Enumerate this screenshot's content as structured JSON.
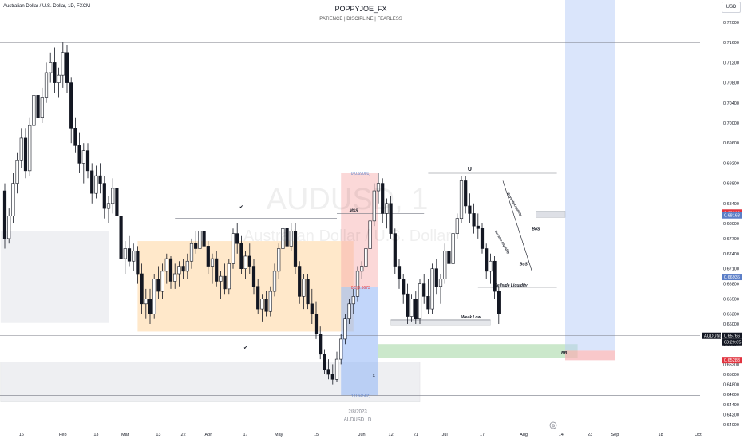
{
  "header": {
    "symbol_title": "Australian Dollar / U.S. Dollar, 1D, FXCM",
    "currency": "USD",
    "brand": "POPPYJOE_FX",
    "tagline": "PATIENCE  |  DISCIPLINE  |  FEARLESS"
  },
  "watermark": {
    "symbol": "AUDUSD, 1",
    "name": "Australian Dollar / U.S. Dollar"
  },
  "colors": {
    "up": "#131722",
    "down": "#131722",
    "range_zone": "#ffd59e",
    "premium_zone": "#f7a9a8",
    "discount_zone": "#90b4f5",
    "target_zone": "#a8d8a8",
    "projection_zone": "#bcd0f7",
    "stop_zone": "#f7b0b3",
    "support_zone": "#d1d4dc",
    "price_tag": "#131722",
    "red_tag": "#e1343f",
    "blue_tag": "#5b7ec7"
  },
  "chart_data": {
    "type": "candlestick",
    "symbol": "AUDUSD",
    "timeframe": "1D",
    "ylim": [
      0.6392,
      0.725
    ],
    "y_ticks": [
      "0.72000",
      "0.71600",
      "0.71200",
      "0.70800",
      "0.70400",
      "0.70000",
      "0.69600",
      "0.69200",
      "0.68800",
      "0.68400",
      "0.68000",
      "0.67700",
      "0.67400",
      "0.67100",
      "0.66800",
      "0.66500",
      "0.66200",
      "0.66000",
      "0.65600",
      "0.65200",
      "0.65000",
      "0.64800",
      "0.64600",
      "0.64400",
      "0.64200",
      "0.64000"
    ],
    "x_ticks": [
      {
        "label": "16",
        "i": 4
      },
      {
        "label": "Feb",
        "i": 14
      },
      {
        "label": "13",
        "i": 22
      },
      {
        "label": "Mar",
        "i": 29
      },
      {
        "label": "13",
        "i": 37
      },
      {
        "label": "22",
        "i": 43
      },
      {
        "label": "Apr",
        "i": 49
      },
      {
        "label": "17",
        "i": 58
      },
      {
        "label": "May",
        "i": 66
      },
      {
        "label": "15",
        "i": 75
      },
      {
        "label": "Jun",
        "i": 86
      },
      {
        "label": "12",
        "i": 93
      },
      {
        "label": "21",
        "i": 99
      },
      {
        "label": "Jul",
        "i": 106
      },
      {
        "label": "17",
        "i": 115
      },
      {
        "label": "Aug",
        "i": 125
      },
      {
        "label": "14",
        "i": 134
      },
      {
        "label": "23",
        "i": 141
      },
      {
        "label": "Sep",
        "i": 147
      },
      {
        "label": "18",
        "i": 158
      },
      {
        "label": "Oct",
        "i": 167
      }
    ],
    "candles": [
      [
        0.6865,
        0.688,
        0.675,
        0.677
      ],
      [
        0.677,
        0.683,
        0.676,
        0.6815
      ],
      [
        0.6815,
        0.69,
        0.68,
        0.688
      ],
      [
        0.688,
        0.694,
        0.686,
        0.6925
      ],
      [
        0.6925,
        0.699,
        0.691,
        0.697
      ],
      [
        0.697,
        0.699,
        0.689,
        0.6905
      ],
      [
        0.6905,
        0.701,
        0.6895,
        0.6995
      ],
      [
        0.6995,
        0.707,
        0.698,
        0.7055
      ],
      [
        0.7055,
        0.7085,
        0.7,
        0.701
      ],
      [
        0.701,
        0.707,
        0.7,
        0.705
      ],
      [
        0.705,
        0.712,
        0.704,
        0.71
      ],
      [
        0.71,
        0.714,
        0.708,
        0.712
      ],
      [
        0.712,
        0.715,
        0.706,
        0.708
      ],
      [
        0.708,
        0.711,
        0.705,
        0.7095
      ],
      [
        0.7095,
        0.716,
        0.707,
        0.714
      ],
      [
        0.714,
        0.7155,
        0.706,
        0.708
      ],
      [
        0.708,
        0.709,
        0.696,
        0.699
      ],
      [
        0.699,
        0.701,
        0.694,
        0.6955
      ],
      [
        0.6955,
        0.698,
        0.69,
        0.692
      ],
      [
        0.692,
        0.696,
        0.688,
        0.6945
      ],
      [
        0.6945,
        0.696,
        0.689,
        0.6905
      ],
      [
        0.6905,
        0.692,
        0.684,
        0.686
      ],
      [
        0.686,
        0.6915,
        0.685,
        0.6895
      ],
      [
        0.6895,
        0.692,
        0.686,
        0.688
      ],
      [
        0.688,
        0.6895,
        0.681,
        0.683
      ],
      [
        0.683,
        0.6855,
        0.68,
        0.684
      ],
      [
        0.684,
        0.689,
        0.682,
        0.687
      ],
      [
        0.687,
        0.688,
        0.68,
        0.6815
      ],
      [
        0.6815,
        0.683,
        0.671,
        0.673
      ],
      [
        0.673,
        0.6765,
        0.67,
        0.675
      ],
      [
        0.675,
        0.6775,
        0.6715,
        0.6725
      ],
      [
        0.6725,
        0.676,
        0.6705,
        0.6745
      ],
      [
        0.6745,
        0.6755,
        0.668,
        0.67
      ],
      [
        0.67,
        0.672,
        0.662,
        0.664
      ],
      [
        0.664,
        0.667,
        0.661,
        0.665
      ],
      [
        0.665,
        0.667,
        0.66,
        0.662
      ],
      [
        0.662,
        0.67,
        0.661,
        0.669
      ],
      [
        0.669,
        0.6715,
        0.665,
        0.6665
      ],
      [
        0.6665,
        0.672,
        0.665,
        0.6705
      ],
      [
        0.6705,
        0.674,
        0.668,
        0.673
      ],
      [
        0.673,
        0.6735,
        0.667,
        0.6685
      ],
      [
        0.6685,
        0.672,
        0.667,
        0.67
      ],
      [
        0.67,
        0.6725,
        0.6675,
        0.6715
      ],
      [
        0.6715,
        0.673,
        0.669,
        0.6705
      ],
      [
        0.6705,
        0.674,
        0.669,
        0.6725
      ],
      [
        0.6725,
        0.677,
        0.671,
        0.676
      ],
      [
        0.676,
        0.6785,
        0.674,
        0.675
      ],
      [
        0.675,
        0.6795,
        0.672,
        0.6785
      ],
      [
        0.6785,
        0.68,
        0.674,
        0.6755
      ],
      [
        0.6755,
        0.6765,
        0.67,
        0.6715
      ],
      [
        0.6715,
        0.674,
        0.668,
        0.673
      ],
      [
        0.673,
        0.6745,
        0.6675,
        0.6685
      ],
      [
        0.6685,
        0.6705,
        0.665,
        0.6695
      ],
      [
        0.6695,
        0.672,
        0.666,
        0.667
      ],
      [
        0.667,
        0.673,
        0.666,
        0.672
      ],
      [
        0.672,
        0.679,
        0.671,
        0.678
      ],
      [
        0.678,
        0.68,
        0.674,
        0.676
      ],
      [
        0.676,
        0.6775,
        0.67,
        0.671
      ],
      [
        0.671,
        0.6745,
        0.669,
        0.6735
      ],
      [
        0.6735,
        0.676,
        0.67,
        0.6715
      ],
      [
        0.6715,
        0.673,
        0.666,
        0.6675
      ],
      [
        0.6675,
        0.669,
        0.662,
        0.663
      ],
      [
        0.663,
        0.666,
        0.6605,
        0.665
      ],
      [
        0.665,
        0.6665,
        0.6615,
        0.6625
      ],
      [
        0.6625,
        0.6675,
        0.6615,
        0.6665
      ],
      [
        0.6665,
        0.672,
        0.6655,
        0.6705
      ],
      [
        0.6705,
        0.676,
        0.669,
        0.675
      ],
      [
        0.675,
        0.68,
        0.674,
        0.679
      ],
      [
        0.679,
        0.681,
        0.674,
        0.6755
      ],
      [
        0.6755,
        0.68,
        0.6745,
        0.6785
      ],
      [
        0.6785,
        0.68,
        0.67,
        0.6715
      ],
      [
        0.6715,
        0.6725,
        0.664,
        0.6655
      ],
      [
        0.6655,
        0.67,
        0.663,
        0.669
      ],
      [
        0.669,
        0.67,
        0.663,
        0.664
      ],
      [
        0.664,
        0.667,
        0.66,
        0.662
      ],
      [
        0.662,
        0.6645,
        0.657,
        0.658
      ],
      [
        0.658,
        0.6595,
        0.653,
        0.654
      ],
      [
        0.654,
        0.655,
        0.65,
        0.651
      ],
      [
        0.651,
        0.653,
        0.649,
        0.65
      ],
      [
        0.65,
        0.652,
        0.648,
        0.649
      ],
      [
        0.649,
        0.6545,
        0.6485,
        0.653
      ],
      [
        0.653,
        0.658,
        0.652,
        0.657
      ],
      [
        0.657,
        0.662,
        0.656,
        0.661
      ],
      [
        0.661,
        0.665,
        0.66,
        0.664
      ],
      [
        0.664,
        0.667,
        0.662,
        0.6655
      ],
      [
        0.6655,
        0.6715,
        0.6645,
        0.6705
      ],
      [
        0.6705,
        0.6725,
        0.669,
        0.6715
      ],
      [
        0.6715,
        0.676,
        0.67,
        0.675
      ],
      [
        0.675,
        0.6815,
        0.674,
        0.6805
      ],
      [
        0.6805,
        0.688,
        0.6795,
        0.6865
      ],
      [
        0.6865,
        0.69,
        0.684,
        0.688
      ],
      [
        0.688,
        0.689,
        0.68,
        0.682
      ],
      [
        0.682,
        0.685,
        0.679,
        0.684
      ],
      [
        0.684,
        0.6855,
        0.677,
        0.678
      ],
      [
        0.678,
        0.679,
        0.67,
        0.6715
      ],
      [
        0.6715,
        0.673,
        0.667,
        0.669
      ],
      [
        0.669,
        0.67,
        0.664,
        0.666
      ],
      [
        0.666,
        0.668,
        0.66,
        0.6615
      ],
      [
        0.6615,
        0.666,
        0.6605,
        0.665
      ],
      [
        0.665,
        0.6665,
        0.66,
        0.661
      ],
      [
        0.661,
        0.669,
        0.66,
        0.668
      ],
      [
        0.668,
        0.67,
        0.664,
        0.6655
      ],
      [
        0.6655,
        0.669,
        0.662,
        0.663
      ],
      [
        0.663,
        0.672,
        0.662,
        0.671
      ],
      [
        0.671,
        0.673,
        0.666,
        0.6675
      ],
      [
        0.6675,
        0.67,
        0.664,
        0.669
      ],
      [
        0.669,
        0.676,
        0.668,
        0.6745
      ],
      [
        0.6745,
        0.676,
        0.67,
        0.672
      ],
      [
        0.672,
        0.679,
        0.671,
        0.678
      ],
      [
        0.678,
        0.682,
        0.677,
        0.681
      ],
      [
        0.681,
        0.6895,
        0.68,
        0.6885
      ],
      [
        0.6885,
        0.6895,
        0.682,
        0.6835
      ],
      [
        0.6835,
        0.686,
        0.68,
        0.682
      ],
      [
        0.682,
        0.684,
        0.678,
        0.6795
      ],
      [
        0.6795,
        0.682,
        0.677,
        0.679
      ],
      [
        0.679,
        0.68,
        0.674,
        0.675
      ],
      [
        0.675,
        0.676,
        0.669,
        0.6705
      ],
      [
        0.6705,
        0.674,
        0.668,
        0.6725
      ],
      [
        0.6725,
        0.6735,
        0.665,
        0.6665
      ],
      [
        0.6665,
        0.6675,
        0.66,
        0.662
      ]
    ],
    "last_price": 0.65766
  },
  "annotations": {
    "price_scale_tags": [
      {
        "price": 0.68218,
        "text": "0.68218",
        "color": "#e1343f"
      },
      {
        "price": 0.68163,
        "text": "0.68163",
        "color": "#5b7ec7"
      },
      {
        "price": 0.66936,
        "text": "0.66936",
        "color": "#5b7ec7"
      },
      {
        "price": 0.65766,
        "text": "0.65766",
        "color": "#131722"
      },
      {
        "price": 0.65283,
        "text": "0.65283",
        "color": "#e1343f"
      }
    ],
    "countdown": "03:29:05",
    "fib_top": "0(0.69001)",
    "fib_mid": "0.5(0.6673",
    "fib_bottom": "1(0.64582)",
    "mss_label": "MSS",
    "weak_low": "Weak Low",
    "bos_1": "BoS",
    "bos_2": "BoS",
    "sellside_liquidity": "Sellside Liquidity",
    "bb_label": "BB",
    "diag_label_1": "Buyside Liquidity",
    "diag_label_2": "Buyside Liquidity",
    "x_marker": "x",
    "u_marker": "U",
    "check_marks": [
      "✔",
      "✔"
    ],
    "date_label": "2/8/2023",
    "symbol_tf_label": "AUDUSD | D",
    "settings_glyph": "⚙"
  }
}
